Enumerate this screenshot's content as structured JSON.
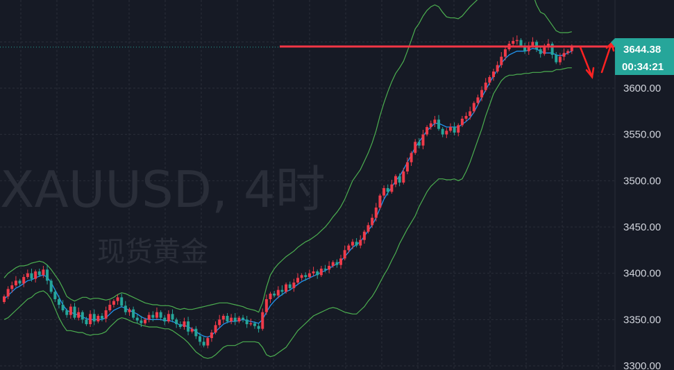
{
  "watermark": {
    "symbol": "XAUUSD, 4时",
    "name": "现货黄金"
  },
  "price_tag": {
    "price": "3644.38",
    "countdown": "00:34:21"
  },
  "colors": {
    "background": "#161a25",
    "grid": "#2a2e39",
    "up": "#ef3b4a",
    "down": "#26a69a",
    "bollinger": "#4caf50",
    "ma": "#2196f3",
    "resistance": "#f23645",
    "arrow": "#ff2222",
    "price_tag": "#26a69a"
  },
  "chart_data": {
    "type": "candlestick",
    "title": "",
    "xlabel": "",
    "ylabel": "",
    "ylim": [
      3300,
      3700
    ],
    "y_ticks": [
      3300,
      3350,
      3400,
      3450,
      3500,
      3550,
      3600
    ],
    "y_tick_labels": [
      "3300.00",
      "3350.00",
      "3400.00",
      "3450.00",
      "3500.00",
      "3550.00",
      "3600.00"
    ],
    "grid": true,
    "last_price": 3644.38,
    "resistance_level": 3645,
    "close": [
      3375,
      3383,
      3387,
      3392,
      3389,
      3396,
      3400,
      3394,
      3402,
      3398,
      3404,
      3392,
      3380,
      3372,
      3366,
      3360,
      3355,
      3364,
      3352,
      3358,
      3350,
      3345,
      3356,
      3348,
      3354,
      3351,
      3360,
      3366,
      3370,
      3374,
      3365,
      3358,
      3361,
      3352,
      3349,
      3346,
      3350,
      3355,
      3352,
      3358,
      3352,
      3348,
      3356,
      3350,
      3345,
      3342,
      3348,
      3337,
      3340,
      3332,
      3326,
      3322,
      3330,
      3336,
      3344,
      3350,
      3354,
      3348,
      3352,
      3348,
      3352,
      3350,
      3345,
      3346,
      3343,
      3340,
      3358,
      3372,
      3378,
      3376,
      3382,
      3380,
      3388,
      3384,
      3390,
      3395,
      3398,
      3396,
      3400,
      3402,
      3398,
      3405,
      3404,
      3408,
      3412,
      3409,
      3416,
      3425,
      3430,
      3434,
      3430,
      3436,
      3445,
      3452,
      3460,
      3471,
      3484,
      3492,
      3488,
      3496,
      3505,
      3498,
      3510,
      3520,
      3530,
      3542,
      3538,
      3550,
      3558,
      3562,
      3566,
      3556,
      3550,
      3554,
      3558,
      3552,
      3560,
      3567,
      3570,
      3575,
      3584,
      3590,
      3598,
      3606,
      3612,
      3618,
      3625,
      3634,
      3642,
      3648,
      3651,
      3652,
      3646,
      3640,
      3646,
      3650,
      3642,
      3637,
      3644,
      3648,
      3636,
      3628,
      3634,
      3638,
      3640,
      3644.38
    ],
    "open": [
      3369,
      3375,
      3383,
      3387,
      3392,
      3389,
      3396,
      3400,
      3394,
      3402,
      3398,
      3404,
      3392,
      3380,
      3372,
      3366,
      3360,
      3355,
      3364,
      3352,
      3358,
      3350,
      3345,
      3356,
      3348,
      3354,
      3351,
      3360,
      3366,
      3370,
      3374,
      3365,
      3358,
      3361,
      3352,
      3349,
      3346,
      3350,
      3355,
      3352,
      3358,
      3352,
      3348,
      3356,
      3350,
      3345,
      3342,
      3348,
      3337,
      3340,
      3332,
      3326,
      3322,
      3330,
      3336,
      3344,
      3350,
      3354,
      3348,
      3352,
      3348,
      3352,
      3350,
      3345,
      3346,
      3343,
      3340,
      3358,
      3372,
      3378,
      3376,
      3382,
      3380,
      3388,
      3384,
      3390,
      3395,
      3398,
      3396,
      3400,
      3402,
      3398,
      3405,
      3404,
      3408,
      3412,
      3409,
      3416,
      3425,
      3430,
      3434,
      3430,
      3436,
      3445,
      3452,
      3460,
      3471,
      3484,
      3492,
      3488,
      3496,
      3505,
      3498,
      3510,
      3520,
      3530,
      3542,
      3538,
      3550,
      3558,
      3562,
      3566,
      3556,
      3550,
      3554,
      3558,
      3552,
      3560,
      3567,
      3570,
      3575,
      3584,
      3590,
      3598,
      3606,
      3612,
      3618,
      3625,
      3634,
      3642,
      3648,
      3651,
      3652,
      3646,
      3640,
      3646,
      3650,
      3642,
      3637,
      3644,
      3648,
      3636,
      3628,
      3634,
      3638,
      3640
    ],
    "bb_upper": [
      3395,
      3400,
      3403,
      3406,
      3408,
      3408,
      3409,
      3411,
      3412,
      3413,
      3412,
      3409,
      3404,
      3398,
      3392,
      3384,
      3375,
      3372,
      3370,
      3372,
      3374,
      3374,
      3372,
      3373,
      3373,
      3372,
      3371,
      3372,
      3374,
      3377,
      3379,
      3378,
      3376,
      3374,
      3372,
      3370,
      3368,
      3367,
      3366,
      3366,
      3365,
      3365,
      3365,
      3364,
      3362,
      3361,
      3362,
      3361,
      3361,
      3362,
      3363,
      3364,
      3365,
      3366,
      3367,
      3368,
      3368,
      3368,
      3367,
      3366,
      3365,
      3364,
      3362,
      3361,
      3360,
      3358,
      3368,
      3385,
      3398,
      3405,
      3410,
      3414,
      3418,
      3421,
      3424,
      3428,
      3431,
      3434,
      3436,
      3439,
      3442,
      3446,
      3450,
      3455,
      3461,
      3466,
      3472,
      3480,
      3490,
      3500,
      3506,
      3512,
      3521,
      3530,
      3541,
      3554,
      3570,
      3584,
      3596,
      3607,
      3616,
      3622,
      3629,
      3640,
      3652,
      3664,
      3670,
      3678,
      3684,
      3688,
      3690,
      3688,
      3682,
      3677,
      3676,
      3676,
      3675,
      3678,
      3683,
      3688,
      3692,
      3696,
      3701,
      3706,
      3712,
      3716,
      3719,
      3724,
      3728,
      3731,
      3730,
      3728,
      3725,
      3718,
      3710,
      3702,
      3690,
      3682,
      3680,
      3674,
      3668,
      3662,
      3660,
      3660,
      3660,
      3661
    ],
    "bb_lower": [
      3350,
      3352,
      3356,
      3360,
      3364,
      3368,
      3372,
      3374,
      3378,
      3380,
      3381,
      3378,
      3372,
      3362,
      3352,
      3344,
      3338,
      3338,
      3337,
      3336,
      3336,
      3334,
      3333,
      3334,
      3334,
      3335,
      3337,
      3342,
      3346,
      3350,
      3352,
      3351,
      3349,
      3347,
      3346,
      3344,
      3343,
      3342,
      3342,
      3342,
      3341,
      3340,
      3340,
      3338,
      3335,
      3332,
      3329,
      3325,
      3320,
      3315,
      3312,
      3309,
      3308,
      3309,
      3312,
      3316,
      3320,
      3322,
      3322,
      3322,
      3324,
      3326,
      3326,
      3326,
      3326,
      3325,
      3320,
      3312,
      3310,
      3311,
      3314,
      3317,
      3320,
      3326,
      3332,
      3338,
      3342,
      3346,
      3350,
      3354,
      3356,
      3358,
      3360,
      3362,
      3363,
      3362,
      3360,
      3358,
      3357,
      3356,
      3356,
      3360,
      3364,
      3370,
      3375,
      3382,
      3390,
      3398,
      3405,
      3414,
      3422,
      3432,
      3440,
      3448,
      3455,
      3462,
      3472,
      3480,
      3488,
      3494,
      3498,
      3502,
      3502,
      3501,
      3501,
      3502,
      3500,
      3502,
      3510,
      3520,
      3532,
      3544,
      3556,
      3570,
      3582,
      3594,
      3601,
      3608,
      3612,
      3614,
      3614,
      3615,
      3615,
      3616,
      3616,
      3617,
      3617,
      3617,
      3618,
      3618,
      3618,
      3620,
      3620,
      3621,
      3622,
      3622
    ],
    "ma": [
      3372,
      3376,
      3380,
      3384,
      3386,
      3389,
      3392,
      3393,
      3395,
      3397,
      3398,
      3396,
      3390,
      3382,
      3374,
      3366,
      3360,
      3358,
      3356,
      3355,
      3353,
      3351,
      3350,
      3350,
      3350,
      3350,
      3352,
      3356,
      3360,
      3362,
      3364,
      3362,
      3360,
      3358,
      3356,
      3353,
      3351,
      3350,
      3350,
      3350,
      3350,
      3349,
      3349,
      3348,
      3346,
      3344,
      3344,
      3342,
      3340,
      3337,
      3334,
      3332,
      3331,
      3333,
      3337,
      3341,
      3345,
      3347,
      3348,
      3348,
      3349,
      3350,
      3349,
      3348,
      3347,
      3346,
      3350,
      3358,
      3365,
      3370,
      3374,
      3377,
      3380,
      3382,
      3385,
      3388,
      3391,
      3393,
      3395,
      3397,
      3399,
      3401,
      3403,
      3405,
      3408,
      3410,
      3413,
      3418,
      3423,
      3428,
      3431,
      3434,
      3440,
      3446,
      3452,
      3460,
      3470,
      3480,
      3487,
      3493,
      3500,
      3505,
      3512,
      3520,
      3528,
      3536,
      3542,
      3548,
      3554,
      3558,
      3562,
      3562,
      3560,
      3558,
      3558,
      3558,
      3558,
      3561,
      3564,
      3568,
      3574,
      3582,
      3590,
      3598,
      3606,
      3613,
      3620,
      3627,
      3632,
      3636,
      3638,
      3640,
      3640,
      3640,
      3641,
      3643,
      3642,
      3640,
      3638,
      3638,
      3638,
      3636,
      3635,
      3636,
      3638,
      3640
    ]
  }
}
